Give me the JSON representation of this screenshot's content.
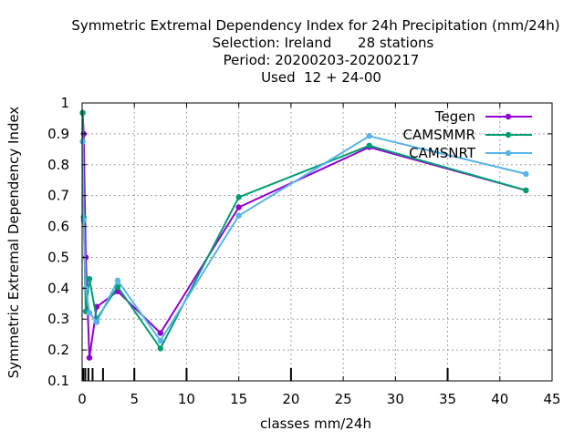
{
  "chart_data": {
    "type": "line",
    "title_lines": [
      "Symmetric Extremal Dependency Index  for 24h Precipitation (mm/24h)",
      "Selection: Ireland      28 stations",
      "Period: 20200203-20200217",
      "Used  12 + 24-00"
    ],
    "xlabel": "classes mm/24h",
    "ylabel": "Symmetric Extremal Dependency Index",
    "xlim": [
      0,
      45
    ],
    "ylim": [
      0.1,
      1.0
    ],
    "xticks": [
      0,
      5,
      10,
      15,
      20,
      25,
      30,
      35,
      40,
      45
    ],
    "yticks": [
      0.1,
      0.2,
      0.3,
      0.4,
      0.5,
      0.6,
      0.7,
      0.8,
      0.9,
      1.0
    ],
    "ytick_labels": [
      "0.1",
      "0.2",
      "0.3",
      "0.4",
      "0.5",
      "0.6",
      "0.7",
      "0.8",
      "0.9",
      "1"
    ],
    "grid": true,
    "legend_position": "top-right",
    "class_marks": [
      0.1,
      0.3,
      0.6,
      1.0,
      2.0,
      5.0,
      10.0,
      20.0,
      35.0
    ],
    "series": [
      {
        "name": "Tegen",
        "color": "#9400d3",
        "x": [
          0.05,
          0.15,
          0.35,
          0.7,
          1.4,
          3.4,
          7.5,
          15.0,
          27.5,
          42.5
        ],
        "y": [
          0.968,
          0.9,
          0.5,
          0.175,
          0.34,
          0.39,
          0.255,
          0.662,
          0.857,
          0.717
        ]
      },
      {
        "name": "CAMSMMR",
        "color": "#009e73",
        "x": [
          0.05,
          0.15,
          0.35,
          0.7,
          1.4,
          3.4,
          7.5,
          15.0,
          27.5,
          42.5
        ],
        "y": [
          0.968,
          0.63,
          0.325,
          0.43,
          0.3,
          0.405,
          0.205,
          0.695,
          0.862,
          0.717
        ]
      },
      {
        "name": "CAMSNRT",
        "color": "#56b4e9",
        "x": [
          0.05,
          0.15,
          0.35,
          0.7,
          1.4,
          3.4,
          7.5,
          15.0,
          27.5,
          42.5
        ],
        "y": [
          0.875,
          0.62,
          0.4,
          0.32,
          0.29,
          0.425,
          0.23,
          0.635,
          0.893,
          0.77
        ]
      }
    ]
  }
}
